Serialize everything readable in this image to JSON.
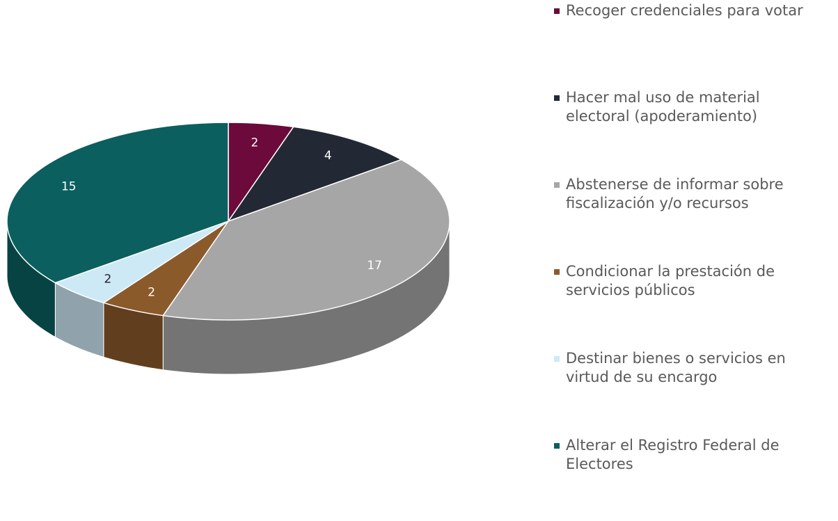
{
  "chart_data": {
    "type": "pie",
    "categories": [
      "Recoger credenciales para votar",
      "Hacer mal uso de material electoral (apoderamiento)",
      "Abstenerse de informar sobre fiscalización y/o recursos",
      "Condicionar la prestación de servicios públicos",
      "Destinar bienes o servicios en virtud de su encargo",
      "Alterar el Registro Federal de Electores"
    ],
    "values": [
      2,
      4,
      17,
      2,
      2,
      15
    ],
    "colors": [
      "#6b0a3b",
      "#232934",
      "#a6a6a6",
      "#8b5a2b",
      "#cde9f6",
      "#0b5f5f"
    ],
    "label_colors": [
      "#ffffff",
      "#ffffff",
      "#ffffff",
      "#ffffff",
      "#222222",
      "#ffffff"
    ],
    "legend": "right"
  }
}
